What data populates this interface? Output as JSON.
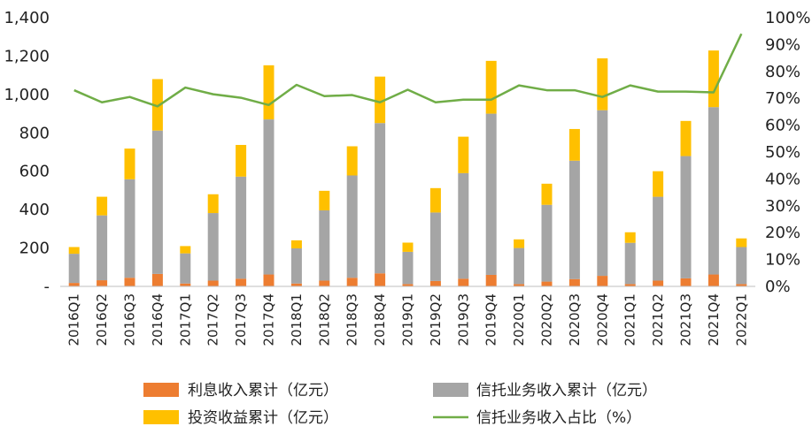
{
  "chart_data": {
    "type": "bar",
    "stacked": true,
    "dual_axis": true,
    "categories": [
      "2016Q1",
      "2016Q2",
      "2016Q3",
      "2016Q4",
      "2017Q1",
      "2017Q2",
      "2017Q3",
      "2017Q4",
      "2018Q1",
      "2018Q2",
      "2018Q3",
      "2018Q4",
      "2019Q1",
      "2019Q2",
      "2019Q3",
      "2019Q4",
      "2020Q1",
      "2020Q2",
      "2020Q3",
      "2020Q4",
      "2021Q1",
      "2021Q2",
      "2021Q3",
      "2021Q4",
      "2022Q1"
    ],
    "series": [
      {
        "name": "利息收入累计（亿元）",
        "kind": "bar",
        "axis": "left",
        "color": "#ED7D31",
        "values": [
          18,
          32,
          45,
          65,
          15,
          30,
          40,
          62,
          15,
          30,
          45,
          68,
          12,
          28,
          40,
          60,
          12,
          25,
          38,
          55,
          12,
          30,
          42,
          62,
          12
        ]
      },
      {
        "name": "信托业务收入累计（亿元）",
        "kind": "bar",
        "axis": "left",
        "color": "#A5A5A5",
        "values": [
          152,
          338,
          513,
          747,
          157,
          352,
          532,
          808,
          183,
          366,
          533,
          783,
          168,
          357,
          550,
          840,
          188,
          400,
          617,
          863,
          215,
          437,
          637,
          872,
          193
        ]
      },
      {
        "name": "投资收益累计（亿元）",
        "kind": "bar",
        "axis": "left",
        "color": "#FFC000",
        "values": [
          35,
          97,
          160,
          268,
          38,
          98,
          165,
          282,
          42,
          102,
          152,
          242,
          48,
          127,
          190,
          275,
          45,
          110,
          165,
          270,
          55,
          133,
          183,
          295,
          45
        ]
      },
      {
        "name": "信托业务收入占比（%）",
        "kind": "line",
        "axis": "right",
        "color": "#70AD47",
        "values": [
          73,
          68.5,
          70.5,
          67,
          74,
          71.5,
          70.2,
          67.5,
          75,
          70.8,
          71.2,
          68.5,
          73.2,
          68.5,
          69.5,
          69.5,
          74.8,
          73,
          73,
          70.5,
          74.8,
          72.5,
          72.5,
          72.2,
          94
        ]
      }
    ],
    "y_left": {
      "min": 0,
      "max": 1400,
      "ticks": [
        "-",
        "200",
        "400",
        "600",
        "800",
        "1,000",
        "1,200",
        "1,400"
      ]
    },
    "y_right": {
      "min": 0,
      "max": 100,
      "ticks": [
        "0%",
        "10%",
        "20%",
        "30%",
        "40%",
        "50%",
        "60%",
        "70%",
        "80%",
        "90%",
        "100%"
      ]
    },
    "grid": false,
    "legend_position": "bottom"
  }
}
